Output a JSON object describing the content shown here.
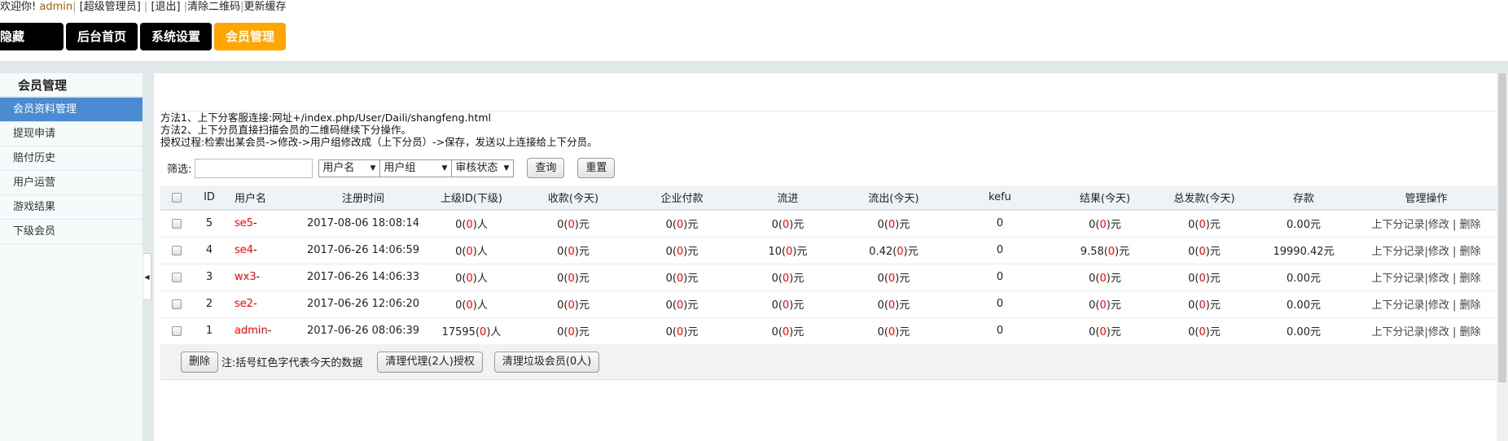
{
  "header": {
    "welcome": "欢迎你!",
    "user": "admin",
    "role": "[超级管理员]",
    "logout": "[退出]",
    "clear_qr": "清除二维码",
    "refresh_cache": "更新缓存"
  },
  "nav": {
    "items": [
      {
        "label": "隐藏>>>"
      },
      {
        "label": "后台首页"
      },
      {
        "label": "系统设置"
      },
      {
        "label": "会员管理",
        "active": true
      }
    ],
    "active_color": "#ffa500"
  },
  "sidebar": {
    "title": "会员管理",
    "items": [
      {
        "label": "会员资料管理",
        "active": true
      },
      {
        "label": "提现申请"
      },
      {
        "label": "赔付历史"
      },
      {
        "label": "用户运营"
      },
      {
        "label": "游戏结果"
      },
      {
        "label": "下级会员"
      }
    ],
    "active_color": "#4a8bd1"
  },
  "notes": [
    "方法1、上下分客服连接:网址+/index.php/User/Daili/shangfeng.html",
    "方法2、上下分员直接扫描会员的二维码继续下分操作。",
    "授权过程:检索出某会员->修改->用户组修改成（上下分员）->保存，发送以上连接给上下分员。"
  ],
  "filter": {
    "label": "筛选:",
    "input_value": "",
    "selects": [
      "用户名",
      "用户组",
      "审核状态"
    ],
    "search": "查询",
    "reset": "重置"
  },
  "table": {
    "headers": [
      "ID",
      "用户名",
      "注册时间",
      "上级ID(下级)",
      "收款(今天)",
      "企业付款",
      "流进",
      "流出(今天)",
      "kefu",
      "结果(今天)",
      "总发款(今天)",
      "存款",
      "管理操作"
    ],
    "rows": [
      {
        "id": "5",
        "user": "se5",
        "reg": "2017-08-06 18:08:14",
        "sup": [
          "0",
          "0",
          "人"
        ],
        "recv": [
          "0",
          "0",
          "元"
        ],
        "corp": [
          "0",
          "0",
          "元"
        ],
        "in": [
          "0",
          "0",
          "元"
        ],
        "out": [
          "0",
          "0",
          "元"
        ],
        "kefu": "0",
        "result": [
          "0",
          "0",
          "元"
        ],
        "paid": [
          "0",
          "0",
          "元"
        ],
        "deposit": "0.00元"
      },
      {
        "id": "4",
        "user": "se4",
        "reg": "2017-06-26 14:06:59",
        "sup": [
          "0",
          "0",
          "人"
        ],
        "recv": [
          "0",
          "0",
          "元"
        ],
        "corp": [
          "0",
          "0",
          "元"
        ],
        "in": [
          "10",
          "0",
          "元"
        ],
        "out": [
          "0.42",
          "0",
          "元"
        ],
        "kefu": "0",
        "result": [
          "9.58",
          "0",
          "元"
        ],
        "paid": [
          "0",
          "0",
          "元"
        ],
        "deposit": "19990.42元"
      },
      {
        "id": "3",
        "user": "wx3",
        "reg": "2017-06-26 14:06:33",
        "sup": [
          "0",
          "0",
          "人"
        ],
        "recv": [
          "0",
          "0",
          "元"
        ],
        "corp": [
          "0",
          "0",
          "元"
        ],
        "in": [
          "0",
          "0",
          "元"
        ],
        "out": [
          "0",
          "0",
          "元"
        ],
        "kefu": "0",
        "result": [
          "0",
          "0",
          "元"
        ],
        "paid": [
          "0",
          "0",
          "元"
        ],
        "deposit": "0.00元"
      },
      {
        "id": "2",
        "user": "se2",
        "reg": "2017-06-26 12:06:20",
        "sup": [
          "0",
          "0",
          "人"
        ],
        "recv": [
          "0",
          "0",
          "元"
        ],
        "corp": [
          "0",
          "0",
          "元"
        ],
        "in": [
          "0",
          "0",
          "元"
        ],
        "out": [
          "0",
          "0",
          "元"
        ],
        "kefu": "0",
        "result": [
          "0",
          "0",
          "元"
        ],
        "paid": [
          "0",
          "0",
          "元"
        ],
        "deposit": "0.00元"
      },
      {
        "id": "1",
        "user": "admin",
        "reg": "2017-06-26 08:06:39",
        "sup": [
          "17595",
          "0",
          "人"
        ],
        "recv": [
          "0",
          "0",
          "元"
        ],
        "corp": [
          "0",
          "0",
          "元"
        ],
        "in": [
          "0",
          "0",
          "元"
        ],
        "out": [
          "0",
          "0",
          "元"
        ],
        "kefu": "0",
        "result": [
          "0",
          "0",
          "元"
        ],
        "paid": [
          "0",
          "0",
          "元"
        ],
        "deposit": "0.00元"
      }
    ],
    "ops": {
      "records": "上下分记录",
      "edit": "修改",
      "delete": "删除"
    }
  },
  "footer": {
    "delete": "删除",
    "note": "注:括号红色字代表今天的数据",
    "clear_agents": "清理代理(2人)授权",
    "clear_junk": "清理垃圾会员(0人)"
  },
  "colors": {
    "highlight": "#ff0000"
  }
}
